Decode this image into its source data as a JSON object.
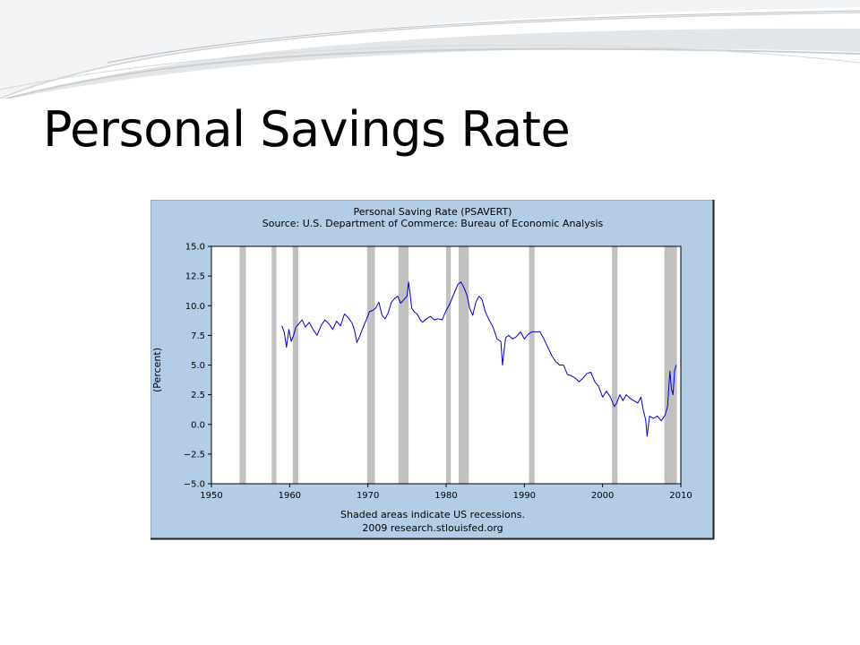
{
  "slide": {
    "title": "Personal Savings Rate"
  },
  "colors": {
    "panel": "#b3cde6",
    "plot_bg": "#ffffff",
    "recession": "#c0c0c0",
    "series_line": "#0000cc",
    "deco_wave": "#d8dcdf"
  },
  "chart_data": {
    "type": "line",
    "title": "Personal Saving Rate (PSAVERT)",
    "subtitle": "Source: U.S. Department of Commerce: Bureau of Economic Analysis",
    "xlabel": "",
    "ylabel": "(Percent)",
    "xlim": [
      1950,
      2010
    ],
    "ylim": [
      -5.0,
      15.0
    ],
    "x_ticks": [
      "1950",
      "1960",
      "1970",
      "1980",
      "1990",
      "2000",
      "2010"
    ],
    "y_ticks": [
      "15.0",
      "12.5",
      "10.0",
      "7.5",
      "5.0",
      "2.5",
      "0.0",
      "−2.5",
      "−5.0"
    ],
    "grid": false,
    "recessions": [
      [
        1953.6,
        1954.4
      ],
      [
        1957.7,
        1958.3
      ],
      [
        1960.4,
        1961.1
      ],
      [
        1969.9,
        1970.9
      ],
      [
        1973.9,
        1975.2
      ],
      [
        1980.0,
        1980.6
      ],
      [
        1981.6,
        1982.9
      ],
      [
        1990.6,
        1991.3
      ],
      [
        2001.2,
        2001.9
      ],
      [
        2007.9,
        2009.5
      ]
    ],
    "series": [
      {
        "x": [
          1959.0,
          1959.3,
          1959.6,
          1959.9,
          1960.2,
          1960.5,
          1960.8,
          1961.2,
          1961.6,
          1962.0,
          1962.5,
          1963.0,
          1963.5,
          1964.0,
          1964.5,
          1965.0,
          1965.5,
          1966.0,
          1966.5,
          1967.0,
          1967.5,
          1968.0,
          1968.3,
          1968.6,
          1969.0,
          1969.4,
          1969.8,
          1970.2,
          1970.6,
          1971.0,
          1971.4,
          1971.8,
          1972.2,
          1972.6,
          1973.0,
          1973.4,
          1973.8,
          1974.2,
          1974.6,
          1975.0,
          1975.2,
          1975.4,
          1975.6,
          1975.9,
          1976.3,
          1976.7,
          1977.0,
          1977.5,
          1978.0,
          1978.5,
          1979.0,
          1979.5,
          1980.0,
          1980.5,
          1981.0,
          1981.5,
          1981.9,
          1982.3,
          1982.7,
          1983.0,
          1983.4,
          1983.8,
          1984.2,
          1984.6,
          1985.0,
          1985.5,
          1986.0,
          1986.5,
          1987.0,
          1987.2,
          1987.6,
          1988.0,
          1988.5,
          1989.0,
          1989.5,
          1990.0,
          1990.5,
          1991.0,
          1991.5,
          1992.0,
          1992.5,
          1993.0,
          1993.5,
          1994.0,
          1994.5,
          1995.0,
          1995.5,
          1996.0,
          1996.5,
          1997.0,
          1997.5,
          1998.0,
          1998.5,
          1999.0,
          1999.5,
          2000.0,
          2000.5,
          2001.0,
          2001.5,
          2001.8,
          2002.2,
          2002.6,
          2003.0,
          2003.5,
          2004.0,
          2004.5,
          2004.9,
          2005.2,
          2005.5,
          2005.7,
          2006.0,
          2006.5,
          2007.0,
          2007.5,
          2008.0,
          2008.3,
          2008.6,
          2008.8,
          2009.0,
          2009.2,
          2009.4
        ],
        "values": [
          8.3,
          7.8,
          6.5,
          8.0,
          7.0,
          7.5,
          8.2,
          8.5,
          8.8,
          8.2,
          8.6,
          8.0,
          7.5,
          8.3,
          8.8,
          8.5,
          8.0,
          8.7,
          8.3,
          9.3,
          9.0,
          8.5,
          7.9,
          6.9,
          7.5,
          8.2,
          8.8,
          9.5,
          9.6,
          9.8,
          10.3,
          9.2,
          8.9,
          9.4,
          10.3,
          10.6,
          10.8,
          10.2,
          10.5,
          10.8,
          12.0,
          11.0,
          9.8,
          9.5,
          9.3,
          8.8,
          8.6,
          8.9,
          9.1,
          8.8,
          8.9,
          8.8,
          9.6,
          10.2,
          11.0,
          11.8,
          12.0,
          11.5,
          10.8,
          9.8,
          9.2,
          10.3,
          10.8,
          10.5,
          9.5,
          8.8,
          8.2,
          7.2,
          7.0,
          5.0,
          7.3,
          7.5,
          7.2,
          7.4,
          7.8,
          7.2,
          7.6,
          7.8,
          7.8,
          7.8,
          7.2,
          6.5,
          5.8,
          5.3,
          5.0,
          5.0,
          4.2,
          4.1,
          3.9,
          3.6,
          3.9,
          4.3,
          4.4,
          3.6,
          3.2,
          2.3,
          2.8,
          2.3,
          1.5,
          1.8,
          2.5,
          2.0,
          2.5,
          2.2,
          2.0,
          1.8,
          2.3,
          1.2,
          0.4,
          -1.0,
          0.7,
          0.5,
          0.7,
          0.3,
          0.8,
          1.5,
          4.5,
          3.0,
          2.5,
          4.5,
          5.0
        ]
      }
    ],
    "footer_note": "Shaded areas indicate US recessions.",
    "credit": "2009 research.stlouisfed.org"
  }
}
